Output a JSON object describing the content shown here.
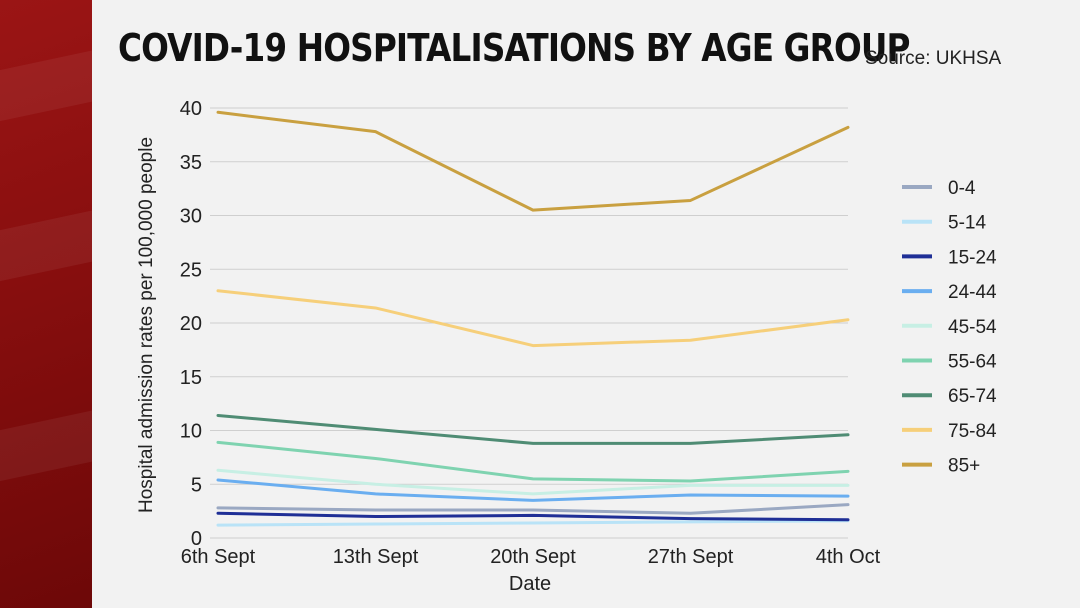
{
  "title": "COVID-19 HOSPITALISATIONS BY AGE GROUP",
  "source": "Source: UKHSA",
  "chart_data": {
    "type": "line",
    "title": "COVID-19 HOSPITALISATIONS BY AGE GROUP",
    "xlabel": "Date",
    "ylabel": "Hospital admission rates per 100,000 people",
    "categories": [
      "6th Sept",
      "13th Sept",
      "20th Sept",
      "27th Sept",
      "4th Oct"
    ],
    "ylim": [
      0,
      40
    ],
    "yticks": [
      0,
      5,
      10,
      15,
      20,
      25,
      30,
      35,
      40
    ],
    "grid": true,
    "legend_position": "right",
    "series": [
      {
        "name": "0-4",
        "color": "#9aa8c2",
        "values": [
          2.8,
          2.6,
          2.6,
          2.3,
          3.1
        ]
      },
      {
        "name": "5-14",
        "color": "#b9e3f7",
        "values": [
          1.2,
          1.3,
          1.4,
          1.5,
          1.6
        ]
      },
      {
        "name": "15-24",
        "color": "#1f2f96",
        "values": [
          2.3,
          2.0,
          2.1,
          1.8,
          1.7
        ]
      },
      {
        "name": "24-44",
        "color": "#6aaef0",
        "values": [
          5.4,
          4.1,
          3.5,
          4.0,
          3.9
        ]
      },
      {
        "name": "45-54",
        "color": "#c7efe4",
        "values": [
          6.3,
          5.0,
          4.1,
          4.9,
          4.9
        ]
      },
      {
        "name": "55-64",
        "color": "#7fd3b0",
        "values": [
          8.9,
          7.4,
          5.5,
          5.3,
          6.2
        ]
      },
      {
        "name": "65-74",
        "color": "#4f8c74",
        "values": [
          11.4,
          10.1,
          8.8,
          8.8,
          9.6
        ]
      },
      {
        "name": "75-84",
        "color": "#f6cf7a",
        "values": [
          23.0,
          21.4,
          17.9,
          18.4,
          20.3
        ]
      },
      {
        "name": "85+",
        "color": "#c9a040",
        "values": [
          39.6,
          37.8,
          30.5,
          31.4,
          38.2
        ]
      }
    ]
  }
}
